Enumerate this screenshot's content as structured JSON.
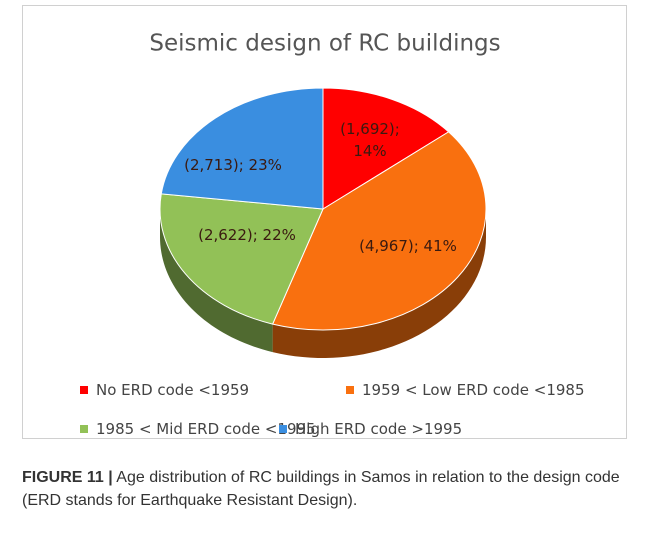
{
  "chart_data": {
    "type": "pie",
    "title": "Seismic design of RC buildings",
    "categories": [
      "No ERD code <1959",
      "1959 < Low ERD code <1985",
      "1985 < Mid ERD code <1995",
      "High ERD code >1995"
    ],
    "values": [
      14,
      41,
      22,
      23
    ],
    "value_labels": [
      "(1,692); 14%",
      "(4,967); 41%",
      "(2,622); 22%",
      "(2,713); 23%"
    ],
    "colors": [
      "#ff0000",
      "#f9700f",
      "#92c157",
      "#3a8ee0"
    ],
    "legend": "bottom"
  },
  "caption": {
    "label": "FIGURE 11 |",
    "text": "Age distribution of RC buildings in Samos in relation to the design code (ERD stands for Earthquake Resistant Design)."
  }
}
